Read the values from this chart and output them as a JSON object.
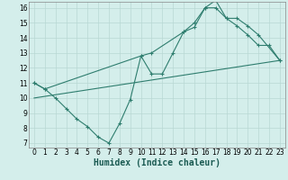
{
  "line1_x": [
    0,
    1,
    2,
    3,
    4,
    5,
    6,
    7,
    8,
    9,
    10,
    11,
    12,
    13,
    14,
    15,
    16,
    17,
    18,
    19,
    20,
    21,
    22,
    23
  ],
  "line1_y": [
    11,
    10.6,
    10.0,
    9.3,
    8.6,
    8.1,
    7.4,
    7.0,
    8.3,
    9.9,
    12.8,
    11.6,
    11.6,
    13.0,
    14.4,
    14.7,
    16.0,
    16.0,
    15.3,
    14.8,
    14.2,
    13.5,
    13.5,
    12.5
  ],
  "line2_x": [
    0,
    1,
    10,
    11,
    14,
    15,
    16,
    17,
    18,
    19,
    20,
    21,
    23
  ],
  "line2_y": [
    11,
    10.6,
    12.8,
    13.0,
    14.4,
    15.0,
    16.0,
    16.5,
    15.3,
    15.3,
    14.8,
    14.2,
    12.5
  ],
  "line3_x": [
    0,
    23
  ],
  "line3_y": [
    10.0,
    12.5
  ],
  "color": "#2e7d6e",
  "bg_color": "#d4eeeb",
  "grid_color": "#b8d8d4",
  "xlabel": "Humidex (Indice chaleur)",
  "xlim": [
    -0.5,
    23.5
  ],
  "ylim": [
    6.7,
    16.4
  ],
  "xticks": [
    0,
    1,
    2,
    3,
    4,
    5,
    6,
    7,
    8,
    9,
    10,
    11,
    12,
    13,
    14,
    15,
    16,
    17,
    18,
    19,
    20,
    21,
    22,
    23
  ],
  "yticks": [
    7,
    8,
    9,
    10,
    11,
    12,
    13,
    14,
    15,
    16
  ],
  "marker": "+",
  "markersize": 3,
  "linewidth": 0.8,
  "fontsize_axis": 5.5,
  "fontsize_label": 7
}
